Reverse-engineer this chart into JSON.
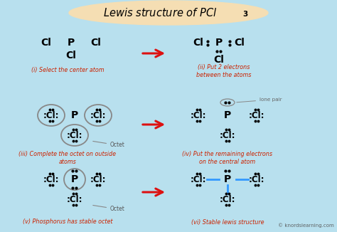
{
  "bg_color": "#b8e0ee",
  "title_bg": "#f5deb3",
  "caption_color": "#cc2200",
  "watermark": "© knordslearning.com",
  "panel_labels": [
    "(i) Select the center atom",
    "(ii) Put 2 electrons\nbetween the atoms",
    "(iii) Complete the octet on outside\natoms",
    "(iv) Put the remaining electrons\non the central atom",
    "(v) Phosphorus has stable octet",
    "(vi) Stable lewis structure"
  ]
}
